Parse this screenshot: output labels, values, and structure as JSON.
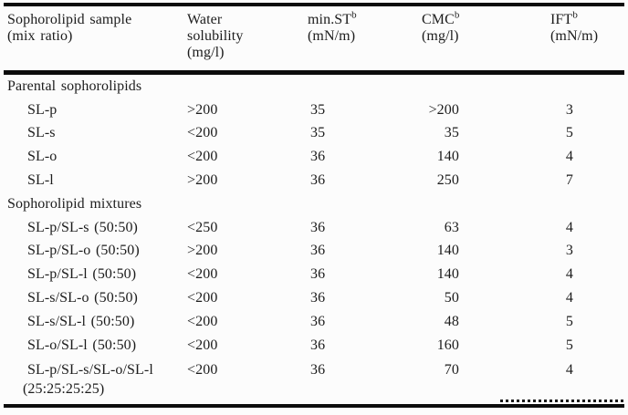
{
  "table": {
    "columns": [
      {
        "lines": [
          "Sophorolipid sample",
          "(mix ratio)"
        ],
        "sup": ""
      },
      {
        "lines": [
          "Water",
          "solubility",
          "(mg/l)"
        ],
        "sup": ""
      },
      {
        "lines": [
          "min.ST",
          "(mN/m)"
        ],
        "sup": "b"
      },
      {
        "lines": [
          "CMC",
          "(mg/l)"
        ],
        "sup": "b"
      },
      {
        "lines": [
          "IFT",
          "(mN/m)"
        ],
        "sup": "b"
      }
    ],
    "rows": [
      {
        "type": "section",
        "label": "Parental sophorolipids"
      },
      {
        "type": "data",
        "label": "SL-p",
        "water_solubility": ">200",
        "min_st": "35",
        "cmc": ">200",
        "ift": "3"
      },
      {
        "type": "data",
        "label": "SL-s",
        "water_solubility": "<200",
        "min_st": "35",
        "cmc": "35",
        "ift": "5"
      },
      {
        "type": "data",
        "label": "SL-o",
        "water_solubility": "<200",
        "min_st": "36",
        "cmc": "140",
        "ift": "4"
      },
      {
        "type": "data",
        "label": "SL-l",
        "water_solubility": ">200",
        "min_st": "36",
        "cmc": "250",
        "ift": "7"
      },
      {
        "type": "section",
        "label": "Sophorolipid mixtures"
      },
      {
        "type": "data",
        "label": "SL-p/SL-s (50:50)",
        "water_solubility": "<250",
        "min_st": "36",
        "cmc": "63",
        "ift": "4"
      },
      {
        "type": "data",
        "label": "SL-p/SL-o (50:50)",
        "water_solubility": ">200",
        "min_st": "36",
        "cmc": "140",
        "ift": "3"
      },
      {
        "type": "data",
        "label": "SL-p/SL-l (50:50)",
        "water_solubility": "<200",
        "min_st": "36",
        "cmc": "140",
        "ift": "4"
      },
      {
        "type": "data",
        "label": "SL-s/SL-o (50:50)",
        "water_solubility": "<200",
        "min_st": "36",
        "cmc": "50",
        "ift": "4"
      },
      {
        "type": "data",
        "label": "SL-s/SL-l (50:50)",
        "water_solubility": "<200",
        "min_st": "36",
        "cmc": "48",
        "ift": "5"
      },
      {
        "type": "data",
        "label": "SL-o/SL-l (50:50)",
        "water_solubility": "<200",
        "min_st": "36",
        "cmc": "160",
        "ift": "5"
      },
      {
        "type": "data",
        "label": "SL-p/SL-s/SL-o/SL-l",
        "label2": "(25:25:25:25)",
        "water_solubility": "<200",
        "min_st": "36",
        "cmc": "70",
        "ift": "4"
      }
    ]
  }
}
